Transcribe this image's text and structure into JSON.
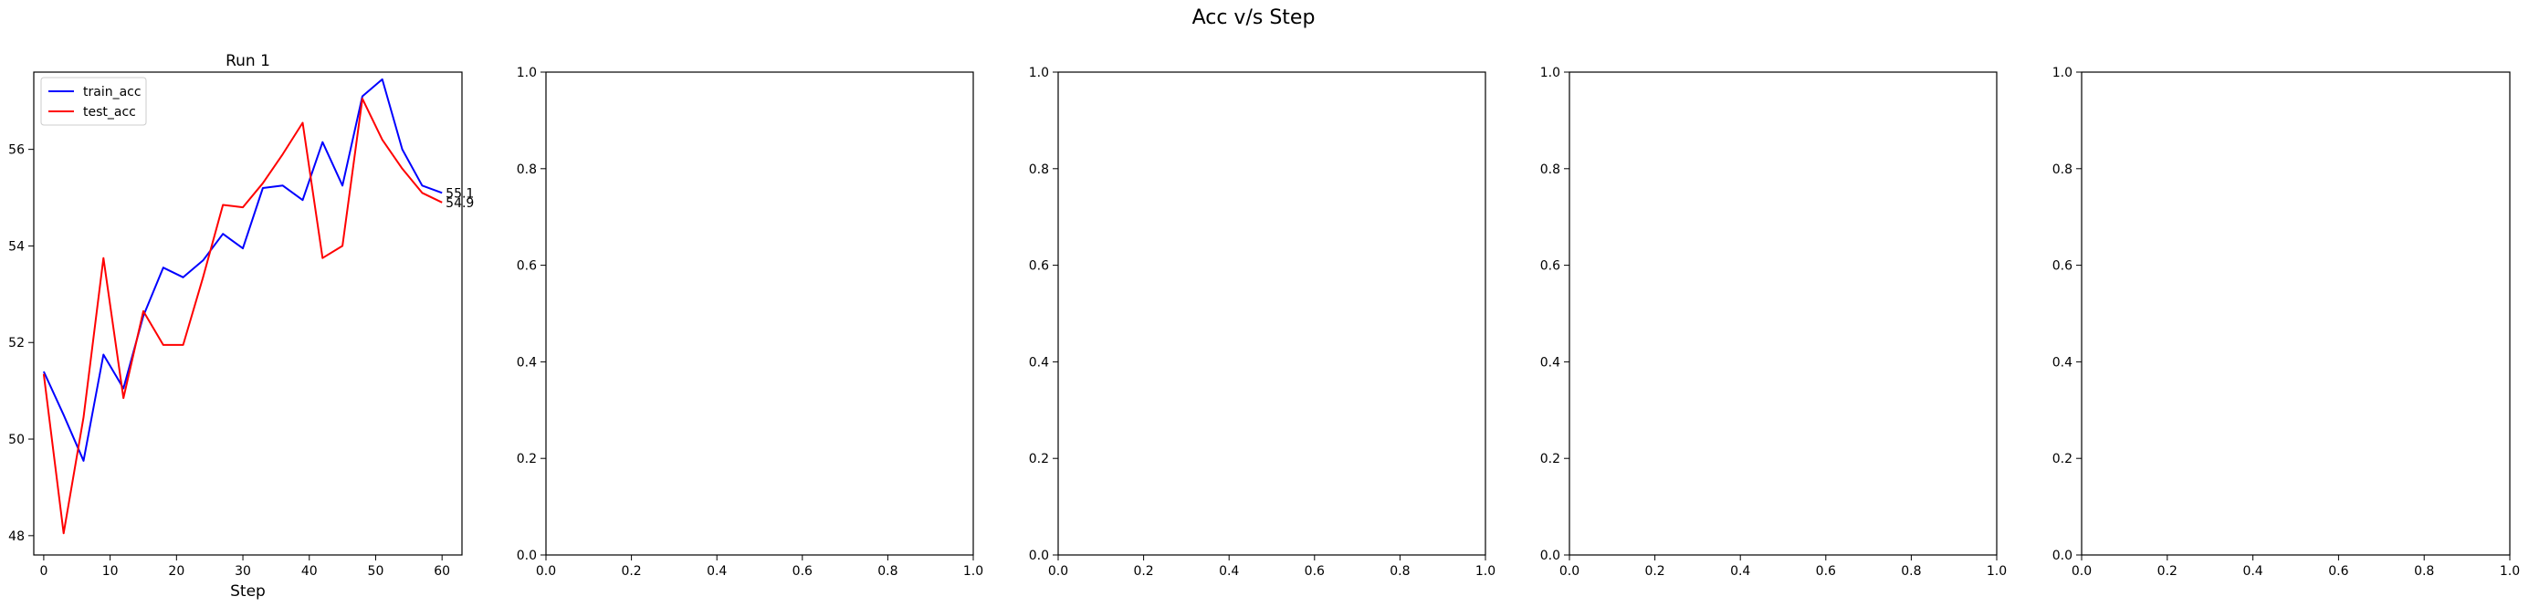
{
  "figure": {
    "suptitle": "Acc v/s Step"
  },
  "chart_data": [
    {
      "type": "line",
      "title": "Run 1",
      "xlabel": "Step",
      "ylabel": "",
      "xlim": [
        -1.5,
        63
      ],
      "ylim": [
        47.6,
        57.6
      ],
      "xticks": [
        0,
        10,
        20,
        30,
        40,
        50,
        60
      ],
      "yticks": [
        48,
        50,
        52,
        54,
        56
      ],
      "legend": "upper-left",
      "series": [
        {
          "name": "train_acc",
          "color": "#0000ff",
          "x": [
            0,
            3,
            6,
            9,
            12,
            15,
            18,
            21,
            24,
            27,
            30,
            33,
            36,
            39,
            42,
            45,
            48,
            51,
            54,
            57,
            60
          ],
          "values": [
            51.4,
            50.5,
            49.55,
            51.75,
            51.05,
            52.55,
            53.55,
            53.35,
            53.7,
            54.25,
            53.95,
            55.2,
            55.25,
            54.95,
            56.15,
            55.25,
            57.1,
            57.45,
            56.0,
            55.25,
            55.1
          ],
          "end_label": "55.1"
        },
        {
          "name": "test_acc",
          "color": "#ff0000",
          "x": [
            0,
            3,
            6,
            9,
            12,
            15,
            18,
            21,
            24,
            27,
            30,
            33,
            36,
            39,
            42,
            45,
            48,
            51,
            54,
            57,
            60
          ],
          "values": [
            51.35,
            48.05,
            50.45,
            53.75,
            50.85,
            52.65,
            51.95,
            51.95,
            53.35,
            54.85,
            54.8,
            55.3,
            55.9,
            56.55,
            53.75,
            54.0,
            57.05,
            56.2,
            55.6,
            55.1,
            54.9
          ],
          "end_label": "54.9"
        }
      ]
    },
    {
      "type": "line",
      "title": "",
      "xlim": [
        0,
        1
      ],
      "ylim": [
        0,
        1
      ],
      "xticks": [
        "0.0",
        "0.2",
        "0.4",
        "0.6",
        "0.8",
        "1.0"
      ],
      "yticks": [
        "0.0",
        "0.2",
        "0.4",
        "0.6",
        "0.8",
        "1.0"
      ],
      "series": []
    },
    {
      "type": "line",
      "title": "",
      "xlim": [
        0,
        1
      ],
      "ylim": [
        0,
        1
      ],
      "xticks": [
        "0.0",
        "0.2",
        "0.4",
        "0.6",
        "0.8",
        "1.0"
      ],
      "yticks": [
        "0.0",
        "0.2",
        "0.4",
        "0.6",
        "0.8",
        "1.0"
      ],
      "series": []
    },
    {
      "type": "line",
      "title": "",
      "xlim": [
        0,
        1
      ],
      "ylim": [
        0,
        1
      ],
      "xticks": [
        "0.0",
        "0.2",
        "0.4",
        "0.6",
        "0.8",
        "1.0"
      ],
      "yticks": [
        "0.0",
        "0.2",
        "0.4",
        "0.6",
        "0.8",
        "1.0"
      ],
      "series": []
    },
    {
      "type": "line",
      "title": "",
      "xlim": [
        0,
        1
      ],
      "ylim": [
        0,
        1
      ],
      "xticks": [
        "0.0",
        "0.2",
        "0.4",
        "0.6",
        "0.8",
        "1.0"
      ],
      "yticks": [
        "0.0",
        "0.2",
        "0.4",
        "0.6",
        "0.8",
        "1.0"
      ],
      "series": []
    }
  ]
}
